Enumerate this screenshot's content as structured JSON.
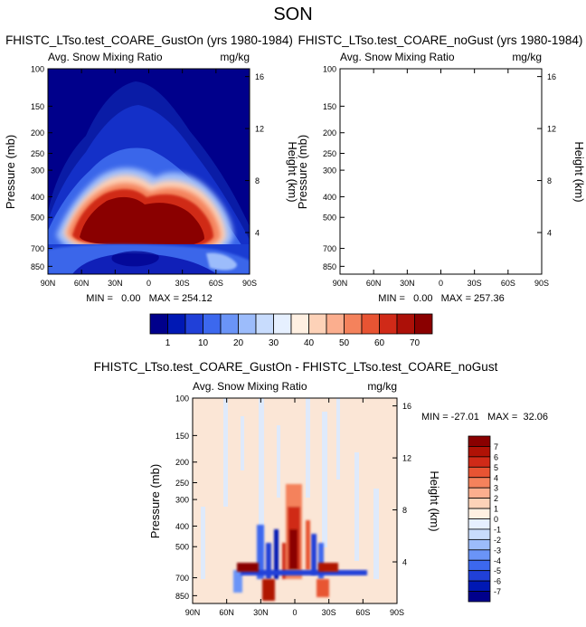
{
  "page_title": "SON",
  "panels": [
    {
      "title": "FHISTC_LTso.test_COARE_GustOn (yrs 1980-1984)",
      "left_string": "Avg. Snow Mixing Ratio",
      "right_string": "mg/kg",
      "stats": "MIN =   0.00   MAX = 254.12"
    },
    {
      "title": "FHISTC_LTso.test_COARE_noGust (yrs 1980-1984)",
      "left_string": "Avg. Snow Mixing Ratio",
      "right_string": "mg/kg",
      "stats": "MIN =   0.00   MAX = 257.36"
    },
    {
      "title": "FHISTC_LTso.test_COARE_GustOn - FHISTC_LTso.test_COARE_noGust",
      "left_string": "Avg. Snow Mixing Ratio",
      "right_string": "mg/kg",
      "stats": "MIN = -27.01   MAX =  32.06"
    }
  ],
  "axes": {
    "ylabel_left": "Pressure (mb)",
    "ylabel_right": "Height (km)",
    "pressure_ticks": [
      "100",
      "150",
      "200",
      "250",
      "300",
      "400",
      "500",
      "700",
      "850"
    ],
    "height_ticks": [
      "16",
      "12",
      "8",
      "4"
    ],
    "lat_ticks": [
      "90N",
      "60N",
      "30N",
      "0",
      "30S",
      "60S",
      "90S"
    ]
  },
  "colorbar_main": {
    "labels": [
      "1",
      "10",
      "20",
      "30",
      "40",
      "50",
      "60",
      "70"
    ],
    "colors": [
      "#00008b",
      "#0018b4",
      "#2040d8",
      "#3c68ee",
      "#6a94f7",
      "#9cbcfb",
      "#c8dcfd",
      "#e6f0ff",
      "#fff0e2",
      "#fdd2b8",
      "#fbae8e",
      "#f4825c",
      "#e85433",
      "#d02a18",
      "#ac1008",
      "#8a0000"
    ]
  },
  "colorbar_diff": {
    "labels": [
      "7",
      "6",
      "5",
      "4",
      "3",
      "2",
      "1",
      "0",
      "-1",
      "-2",
      "-3",
      "-4",
      "-5",
      "-6",
      "-7"
    ],
    "colors": [
      "#8a0000",
      "#b01206",
      "#d02a18",
      "#e85433",
      "#f4825c",
      "#fbae8e",
      "#fdd2b8",
      "#fff0e2",
      "#e6f0ff",
      "#c8dcfd",
      "#9cbcfb",
      "#6a94f7",
      "#3c68ee",
      "#2040d8",
      "#0018b4",
      "#00008b"
    ]
  },
  "chart_data": [
    {
      "type": "heatmap",
      "title": "FHISTC_LTso.test_COARE_GustOn (yrs 1980-1984)",
      "variable": "Avg. Snow Mixing Ratio",
      "units": "mg/kg",
      "x_axis": "latitude",
      "x_ticks": [
        "90N",
        "60N",
        "30N",
        "0",
        "30S",
        "60S",
        "90S"
      ],
      "y_axis": "Pressure (mb)",
      "y_ticks": [
        100,
        150,
        200,
        250,
        300,
        400,
        500,
        700,
        850
      ],
      "y2_axis": "Height (km)",
      "y2_ticks": [
        16,
        12,
        8,
        4
      ],
      "min": 0.0,
      "max": 254.12,
      "levels": [
        1,
        10,
        20,
        30,
        40,
        50,
        60,
        70
      ]
    },
    {
      "type": "heatmap",
      "title": "FHISTC_LTso.test_COARE_noGust (yrs 1980-1984)",
      "variable": "Avg. Snow Mixing Ratio",
      "units": "mg/kg",
      "x_axis": "latitude",
      "x_ticks": [
        "90N",
        "60N",
        "30N",
        "0",
        "30S",
        "60S",
        "90S"
      ],
      "y_axis": "Pressure (mb)",
      "y_ticks": [
        100,
        150,
        200,
        250,
        300,
        400,
        500,
        700,
        850
      ],
      "y2_axis": "Height (km)",
      "y2_ticks": [
        16,
        12,
        8,
        4
      ],
      "min": 0.0,
      "max": 257.36,
      "levels": [
        1,
        10,
        20,
        30,
        40,
        50,
        60,
        70
      ]
    },
    {
      "type": "heatmap",
      "title": "FHISTC_LTso.test_COARE_GustOn - FHISTC_LTso.test_COARE_noGust",
      "variable": "Avg. Snow Mixing Ratio",
      "units": "mg/kg",
      "x_axis": "latitude",
      "x_ticks": [
        "90N",
        "60N",
        "30N",
        "0",
        "30S",
        "60S",
        "90S"
      ],
      "y_axis": "Pressure (mb)",
      "y_ticks": [
        100,
        150,
        200,
        250,
        300,
        400,
        500,
        700,
        850
      ],
      "y2_axis": "Height (km)",
      "y2_ticks": [
        16,
        12,
        8,
        4
      ],
      "min": -27.01,
      "max": 32.06,
      "levels": [
        -7,
        -6,
        -5,
        -4,
        -3,
        -2,
        -1,
        0,
        1,
        2,
        3,
        4,
        5,
        6,
        7
      ]
    }
  ]
}
